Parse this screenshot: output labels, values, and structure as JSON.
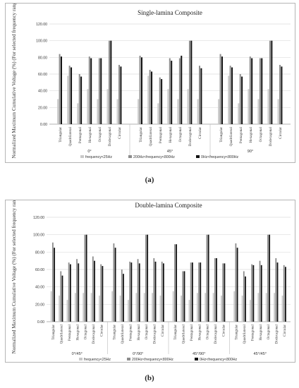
{
  "panels": [
    {
      "letter": "(a)"
    },
    {
      "letter": "(b)"
    }
  ],
  "chart_data": [
    {
      "type": "bar",
      "title": "Single-lamina Composite",
      "ylabel": "Normalized Maximum Cumulative Voltage (%) (For selected frequency range)",
      "ylim": [
        0,
        120
      ],
      "yticks": [
        "0.00",
        "20.00",
        "40.00",
        "60.00",
        "80.00",
        "100.00",
        "120.00"
      ],
      "shapes": [
        "Triangular",
        "Quadrilateral",
        "Pentagonal",
        "Hexagonal",
        "Octagonal",
        "Dodecagonal",
        "Circular"
      ],
      "groups": [
        "0°",
        "45°",
        "90°"
      ],
      "legend_position": "bottom",
      "colors": [
        "#c9c9c9",
        "#8c8c8c",
        "#111111"
      ],
      "series": [
        {
          "name": "frequency<25Hz",
          "values": [
            [
              30,
              58,
              25,
              42,
              30,
              42,
              30
            ],
            [
              30,
              58,
              25,
              42,
              30,
              42,
              30
            ],
            [
              30,
              58,
              25,
              42,
              30,
              42,
              30
            ]
          ]
        },
        {
          "name": "200Hz<frequency<800Hz",
          "values": [
            [
              84,
              70,
              60,
              81,
              79,
              100,
              71
            ],
            [
              82,
              65,
              56,
              79,
              79,
              100,
              70
            ],
            [
              84,
              70,
              60,
              81,
              79,
              100,
              71
            ]
          ]
        },
        {
          "name": "0Hz<frequency<800Hz",
          "values": [
            [
              81,
              68,
              57,
              79,
              79,
              100,
              69
            ],
            [
              80,
              63,
              54,
              76,
              82,
              100,
              67
            ],
            [
              81,
              68,
              57,
              79,
              79,
              100,
              69
            ]
          ]
        }
      ]
    },
    {
      "type": "bar",
      "title": "Double-lamina Composite",
      "ylabel": "Normalized Maximum Cumulative Voltage (%) (For selected frequency range)",
      "ylim": [
        0,
        120
      ],
      "yticks": [
        "0.00",
        "20.00",
        "40.00",
        "60.00",
        "80.00",
        "100.00",
        "120.00"
      ],
      "shapes": [
        "Triangular",
        "Quadrilateral",
        "Pentagonal",
        "Hexagonal",
        "Octagonal",
        "Dodecagonal",
        "Circular"
      ],
      "groups": [
        "0°/45°",
        "0°/90°",
        "45°/90°",
        "45°/45°"
      ],
      "legend_position": "bottom",
      "colors": [
        "#c9c9c9",
        "#8c8c8c",
        "#111111"
      ],
      "series": [
        {
          "name": "frequency<25Hz",
          "values": [
            [
              35,
              30,
              25,
              33,
              33,
              33,
              30
            ],
            [
              35,
              30,
              25,
              33,
              33,
              33,
              30
            ],
            [
              35,
              30,
              25,
              33,
              33,
              33,
              30
            ],
            [
              35,
              30,
              25,
              33,
              33,
              33,
              30
            ]
          ]
        },
        {
          "name": "200Hz<frequency<800Hz",
          "values": [
            [
              91,
              58,
              68,
              72,
              100,
              75,
              66
            ],
            [
              90,
              60,
              69,
              72,
              100,
              73,
              69
            ],
            [
              89,
              58,
              68,
              68,
              100,
              73,
              67
            ],
            [
              90,
              58,
              66,
              70,
              100,
              73,
              65
            ]
          ]
        },
        {
          "name": "0Hz<frequency<800Hz",
          "values": [
            [
              85,
              53,
              66,
              67,
              100,
              70,
              64
            ],
            [
              85,
              55,
              68,
              67,
              100,
              69,
              67
            ],
            [
              89,
              58,
              68,
              68,
              100,
              73,
              67
            ],
            [
              85,
              52,
              65,
              65,
              100,
              68,
              63
            ]
          ]
        }
      ]
    }
  ]
}
